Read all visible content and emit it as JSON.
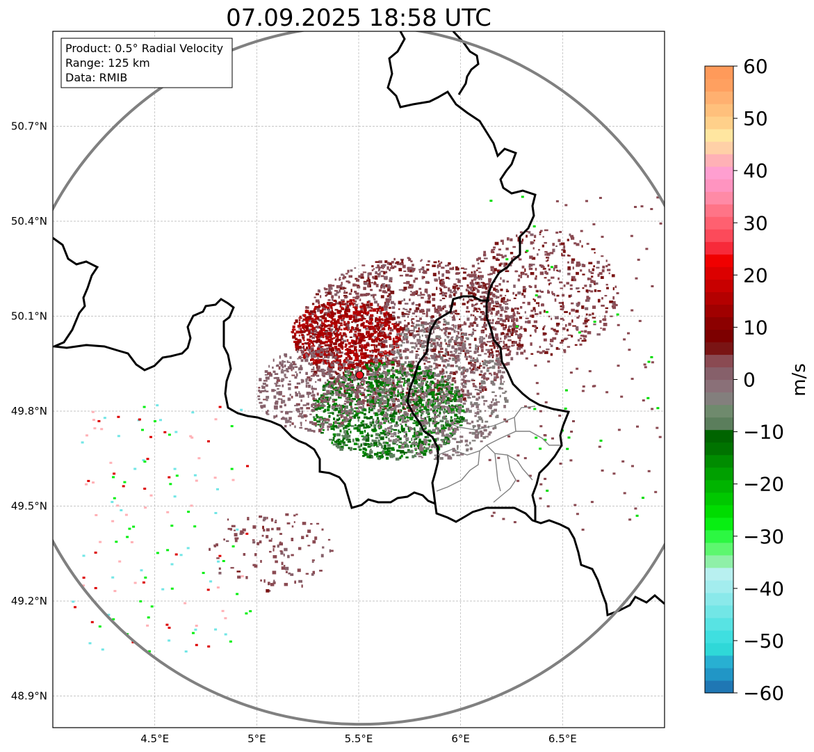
{
  "title": "07.09.2025 18:58 UTC",
  "info_box": {
    "line1": "Product: 0.5° Radial Velocity",
    "line2": "Range: 125 km",
    "line3": "Data: RMIB"
  },
  "map": {
    "lon_range": [
      4.0,
      7.0
    ],
    "lat_range": [
      48.8,
      51.0
    ],
    "lon_ticks": [
      {
        "value": 4.5,
        "label": "4.5°E"
      },
      {
        "value": 5.0,
        "label": "5°E"
      },
      {
        "value": 5.5,
        "label": "5.5°E"
      },
      {
        "value": 6.0,
        "label": "6°E"
      },
      {
        "value": 6.5,
        "label": "6.5°E"
      }
    ],
    "lat_ticks": [
      {
        "value": 50.7,
        "label": "50.7°N"
      },
      {
        "value": 50.4,
        "label": "50.4°N"
      },
      {
        "value": 50.1,
        "label": "50.1°N"
      },
      {
        "value": 49.8,
        "label": "49.8°N"
      },
      {
        "value": 49.5,
        "label": "49.5°N"
      },
      {
        "value": 49.2,
        "label": "49.2°N"
      },
      {
        "value": 48.9,
        "label": "48.9°N"
      }
    ],
    "radar_site": {
      "lon": 5.505,
      "lat": 49.914
    },
    "range_ring_km": 125,
    "gridlines": true,
    "ring_color": "#808080",
    "border_color": "#000000",
    "site_color": "#e8141c"
  },
  "colorbar": {
    "label": "m/s",
    "min": -60,
    "max": 60,
    "ticks": [
      {
        "value": 60,
        "label": "60"
      },
      {
        "value": 50,
        "label": "50"
      },
      {
        "value": 40,
        "label": "40"
      },
      {
        "value": 30,
        "label": "30"
      },
      {
        "value": 20,
        "label": "20"
      },
      {
        "value": 10,
        "label": "10"
      },
      {
        "value": 0,
        "label": "0"
      },
      {
        "value": -10,
        "label": "−10"
      },
      {
        "value": -20,
        "label": "−20"
      },
      {
        "value": -30,
        "label": "−30"
      },
      {
        "value": -40,
        "label": "−40"
      },
      {
        "value": -50,
        "label": "−50"
      },
      {
        "value": -60,
        "label": "−60"
      }
    ],
    "colors": [
      "#1f77b4",
      "#2196c6",
      "#28b0d2",
      "#2fd8d8",
      "#3fdfe0",
      "#58e3e3",
      "#72e6e6",
      "#8ae9ea",
      "#a3edee",
      "#b8f0f0",
      "#8ff0a8",
      "#5df76f",
      "#2cf742",
      "#08ef12",
      "#00dc00",
      "#00c800",
      "#00b400",
      "#00a000",
      "#008c00",
      "#007300",
      "#006400",
      "#5b7e5c",
      "#6f8a6d",
      "#837f7d",
      "#8a7078",
      "#86606a",
      "#8a4a52",
      "#7a1414",
      "#7d0000",
      "#8c0000",
      "#a00000",
      "#b40000",
      "#c80000",
      "#dc0000",
      "#f00000",
      "#f72a3a",
      "#fc4a5a",
      "#ff6070",
      "#ff7487",
      "#ff8aa6",
      "#ff94c0",
      "#ff9fd0",
      "#ffb1b6",
      "#ffd0a7",
      "#ffe6a0",
      "#ffd08a",
      "#ffc07c",
      "#ffb070",
      "#ffa060",
      "#ff9a5a"
    ]
  }
}
